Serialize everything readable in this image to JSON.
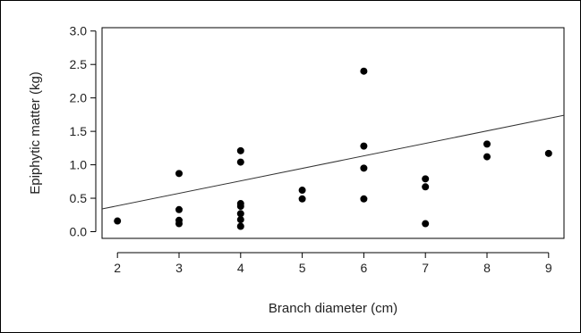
{
  "chart_data": {
    "type": "scatter",
    "xlabel": "Branch diameter (cm)",
    "ylabel": "Epiphytic matter (kg)",
    "xlim": [
      1.75,
      9.25
    ],
    "ylim": [
      -0.1,
      3.05
    ],
    "xticks": [
      2,
      3,
      4,
      5,
      6,
      7,
      8,
      9
    ],
    "yticks": [
      0.0,
      0.5,
      1.0,
      1.5,
      2.0,
      2.5,
      3.0
    ],
    "ytick_labels": [
      "0.0",
      "0.5",
      "1.0",
      "1.5",
      "2.0",
      "2.5",
      "3.0"
    ],
    "grid": false,
    "points": [
      [
        2,
        0.16
      ],
      [
        3,
        0.87
      ],
      [
        3,
        0.33
      ],
      [
        3,
        0.17
      ],
      [
        3,
        0.12
      ],
      [
        4,
        1.21
      ],
      [
        4,
        1.04
      ],
      [
        4,
        0.42
      ],
      [
        4,
        0.38
      ],
      [
        4,
        0.27
      ],
      [
        4,
        0.18
      ],
      [
        4,
        0.08
      ],
      [
        5,
        0.62
      ],
      [
        5,
        0.49
      ],
      [
        6,
        2.4
      ],
      [
        6,
        1.28
      ],
      [
        6,
        0.95
      ],
      [
        6,
        0.49
      ],
      [
        7,
        0.79
      ],
      [
        7,
        0.67
      ],
      [
        7,
        0.12
      ],
      [
        8,
        1.31
      ],
      [
        8,
        1.12
      ],
      [
        9,
        1.17
      ]
    ],
    "fit_line": {
      "x": [
        1.75,
        9.25
      ],
      "y": [
        0.34,
        1.74
      ]
    }
  }
}
